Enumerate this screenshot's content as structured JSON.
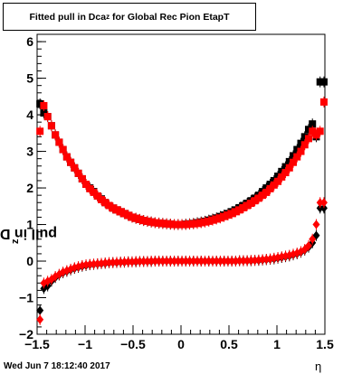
{
  "canvas": {
    "timestamp": "Wed Jun  7 18:12:40 2017"
  },
  "chart_data": {
    "type": "scatter",
    "title": "Fitted pull in Dca",
    "title_subscript": "z",
    "title_suffix": " for Global Rec Pion EtapT",
    "xlabel": "η",
    "ylabel": "pull in Dca",
    "ylabel_subscript": "z",
    "xlim": [
      -1.5,
      1.5
    ],
    "ylim": [
      -2,
      6.2
    ],
    "xticks": [
      -1.5,
      -1,
      -0.5,
      0,
      0.5,
      1,
      1.5
    ],
    "xtick_labels": [
      "−1.5",
      "−1",
      "−0.5",
      "0",
      "0.5",
      "1",
      "1.5"
    ],
    "yticks": [
      -2,
      -1,
      0,
      1,
      2,
      3,
      4,
      5,
      6
    ],
    "ytick_labels": [
      "−2",
      "−1",
      "0",
      "1",
      "2",
      "3",
      "4",
      "5",
      "6"
    ],
    "grid": false,
    "colors": {
      "black_series": "#000000",
      "red_series": "#ff0000"
    },
    "x": [
      -1.47,
      -1.43,
      -1.39,
      -1.35,
      -1.31,
      -1.27,
      -1.23,
      -1.19,
      -1.15,
      -1.11,
      -1.07,
      -1.03,
      -0.99,
      -0.95,
      -0.91,
      -0.87,
      -0.83,
      -0.79,
      -0.75,
      -0.71,
      -0.67,
      -0.63,
      -0.59,
      -0.55,
      -0.51,
      -0.47,
      -0.43,
      -0.39,
      -0.35,
      -0.31,
      -0.27,
      -0.23,
      -0.19,
      -0.15,
      -0.11,
      -0.07,
      -0.03,
      0.01,
      0.05,
      0.09,
      0.13,
      0.17,
      0.21,
      0.25,
      0.29,
      0.33,
      0.37,
      0.41,
      0.45,
      0.49,
      0.53,
      0.57,
      0.61,
      0.65,
      0.69,
      0.73,
      0.77,
      0.81,
      0.85,
      0.89,
      0.93,
      0.97,
      1.01,
      1.05,
      1.09,
      1.13,
      1.17,
      1.21,
      1.25,
      1.29,
      1.33,
      1.37,
      1.41,
      1.45,
      1.49
    ],
    "series": [
      {
        "marker": "square",
        "color": "black",
        "errorbars": true,
        "values": [
          4.3,
          4.05,
          3.95,
          3.7,
          3.45,
          3.25,
          3.05,
          2.85,
          2.7,
          2.55,
          2.4,
          2.25,
          2.1,
          2.0,
          1.9,
          1.78,
          1.7,
          1.6,
          1.52,
          1.45,
          1.4,
          1.35,
          1.3,
          1.25,
          1.2,
          1.17,
          1.14,
          1.11,
          1.09,
          1.07,
          1.05,
          1.04,
          1.03,
          1.02,
          1.01,
          1.0,
          1.0,
          1.0,
          1.01,
          1.02,
          1.03,
          1.05,
          1.07,
          1.09,
          1.12,
          1.15,
          1.18,
          1.22,
          1.26,
          1.3,
          1.35,
          1.4,
          1.46,
          1.52,
          1.58,
          1.65,
          1.72,
          1.8,
          1.9,
          2.0,
          2.1,
          2.2,
          2.32,
          2.45,
          2.58,
          2.72,
          2.88,
          3.05,
          3.22,
          3.4,
          3.6,
          3.75,
          3.4,
          4.9,
          4.9
        ]
      },
      {
        "marker": "square",
        "color": "red",
        "errorbars": true,
        "values": [
          3.55,
          4.25,
          3.95,
          3.7,
          3.45,
          3.25,
          3.05,
          2.85,
          2.7,
          2.55,
          2.4,
          2.25,
          2.1,
          1.98,
          1.88,
          1.78,
          1.68,
          1.6,
          1.52,
          1.45,
          1.4,
          1.35,
          1.3,
          1.25,
          1.2,
          1.17,
          1.14,
          1.11,
          1.09,
          1.07,
          1.05,
          1.04,
          1.03,
          1.02,
          1.01,
          1.0,
          1.0,
          1.0,
          1.0,
          1.01,
          1.02,
          1.03,
          1.05,
          1.07,
          1.09,
          1.12,
          1.15,
          1.18,
          1.22,
          1.26,
          1.3,
          1.35,
          1.4,
          1.46,
          1.52,
          1.58,
          1.65,
          1.72,
          1.8,
          1.88,
          1.98,
          2.08,
          2.18,
          2.3,
          2.42,
          2.55,
          2.7,
          2.85,
          3.0,
          3.18,
          3.35,
          3.55,
          3.45,
          3.55,
          4.35
        ]
      },
      {
        "marker": "diamond",
        "color": "black",
        "errorbars": true,
        "values": [
          -1.35,
          -0.75,
          -0.68,
          -0.55,
          -0.45,
          -0.38,
          -0.32,
          -0.28,
          -0.24,
          -0.2,
          -0.17,
          -0.14,
          -0.12,
          -0.1,
          -0.09,
          -0.08,
          -0.07,
          -0.06,
          -0.05,
          -0.04,
          -0.04,
          -0.03,
          -0.03,
          -0.02,
          -0.02,
          -0.02,
          -0.01,
          -0.01,
          -0.01,
          -0.01,
          0.0,
          0.0,
          0.0,
          0.0,
          0.0,
          0.0,
          0.0,
          0.0,
          0.0,
          0.0,
          0.0,
          0.0,
          0.0,
          0.0,
          0.0,
          0.0,
          0.0,
          0.0,
          0.0,
          0.0,
          0.0,
          0.0,
          0.01,
          0.01,
          0.01,
          0.01,
          0.02,
          0.02,
          0.03,
          0.04,
          0.05,
          0.06,
          0.08,
          0.1,
          0.12,
          0.14,
          0.17,
          0.2,
          0.24,
          0.3,
          0.38,
          0.5,
          0.7,
          1.45,
          1.45
        ]
      },
      {
        "marker": "diamond",
        "color": "red",
        "errorbars": true,
        "values": [
          -1.6,
          -0.6,
          -0.55,
          -0.5,
          -0.42,
          -0.36,
          -0.3,
          -0.26,
          -0.22,
          -0.18,
          -0.15,
          -0.12,
          -0.1,
          -0.09,
          -0.08,
          -0.07,
          -0.06,
          -0.05,
          -0.04,
          -0.04,
          -0.03,
          -0.03,
          -0.02,
          -0.02,
          -0.02,
          -0.01,
          -0.01,
          -0.01,
          -0.01,
          0.0,
          0.0,
          0.0,
          0.0,
          0.0,
          0.0,
          0.0,
          0.0,
          0.0,
          0.0,
          0.0,
          0.0,
          0.0,
          0.0,
          0.0,
          0.0,
          0.0,
          0.0,
          0.0,
          0.0,
          0.0,
          0.0,
          0.0,
          0.01,
          0.01,
          0.01,
          0.02,
          0.02,
          0.03,
          0.04,
          0.05,
          0.06,
          0.08,
          0.1,
          0.12,
          0.14,
          0.16,
          0.19,
          0.22,
          0.26,
          0.32,
          0.42,
          0.6,
          1.0,
          1.6,
          1.6
        ]
      }
    ]
  }
}
